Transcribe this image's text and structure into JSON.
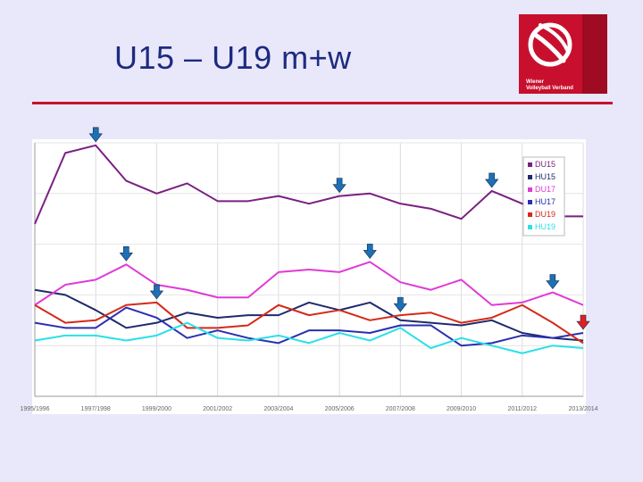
{
  "slide": {
    "title": "U15 – U19 m+w"
  },
  "logo": {
    "brand_line1": "Wiener",
    "brand_line2": "Volleyball Verband",
    "accent": "#c8102e"
  },
  "chart_data": {
    "type": "line",
    "title": "",
    "xlabel": "",
    "ylabel": "",
    "ylim": [
      0,
      100
    ],
    "grid": true,
    "legend": "top-right",
    "x": [
      "1995/1996",
      "1996/1997",
      "1997/1998",
      "1998/1999",
      "1999/2000",
      "2000/2001",
      "2001/2002",
      "2002/2003",
      "2003/2004",
      "2004/2005",
      "2005/2006",
      "2006/2007",
      "2007/2008",
      "2008/2009",
      "2009/2010",
      "2010/2011",
      "2011/2012",
      "2012/2013",
      "2013/2014"
    ],
    "tick_labels": [
      "1995/1996",
      "1997/1998",
      "1999/2000",
      "2001/2002",
      "2003/2004",
      "2005/2006",
      "2007/2008",
      "2009/2010",
      "2011/2012",
      "2013/2014"
    ],
    "series": [
      {
        "name": "DU15",
        "color": "#7b1f82",
        "values": [
          68,
          96,
          99,
          85,
          80,
          84,
          77,
          77,
          79,
          76,
          79,
          80,
          76,
          74,
          70,
          81,
          76,
          71,
          71
        ]
      },
      {
        "name": "HU15",
        "color": "#1f2a6b",
        "values": [
          42,
          40,
          34,
          27,
          29,
          33,
          31,
          32,
          32,
          37,
          34,
          37,
          30,
          29,
          28,
          30,
          25,
          23,
          22
        ]
      },
      {
        "name": "DU17",
        "color": "#e03ad6",
        "values": [
          36,
          44,
          46,
          52,
          44,
          42,
          39,
          39,
          49,
          50,
          49,
          53,
          45,
          42,
          46,
          36,
          37,
          41,
          36
        ]
      },
      {
        "name": "HU17",
        "color": "#2a2fb0",
        "values": [
          29,
          27,
          27,
          35,
          31,
          23,
          26,
          23,
          21,
          26,
          26,
          25,
          28,
          28,
          20,
          21,
          24,
          23,
          25
        ]
      },
      {
        "name": "DU19",
        "color": "#d42a1a",
        "values": [
          36,
          29,
          30,
          36,
          37,
          27,
          27,
          28,
          36,
          32,
          34,
          30,
          32,
          33,
          29,
          31,
          36,
          29,
          21
        ]
      },
      {
        "name": "HU19",
        "color": "#2ae0e8",
        "values": [
          22,
          24,
          24,
          22,
          24,
          29,
          23,
          22,
          24,
          21,
          25,
          22,
          27,
          19,
          23,
          20,
          17,
          20,
          19
        ]
      }
    ],
    "markers": [
      {
        "x": "1997/1998",
        "y": 99,
        "color": "#1f6fb5"
      },
      {
        "x": "1998/1999",
        "y": 52,
        "color": "#1f6fb5"
      },
      {
        "x": "1999/2000",
        "y": 37,
        "color": "#1f6fb5"
      },
      {
        "x": "2005/2006",
        "y": 79,
        "color": "#1f6fb5"
      },
      {
        "x": "2006/2007",
        "y": 53,
        "color": "#1f6fb5"
      },
      {
        "x": "2007/2008",
        "y": 32,
        "color": "#1f6fb5"
      },
      {
        "x": "2010/2011",
        "y": 81,
        "color": "#1f6fb5"
      },
      {
        "x": "2012/2013",
        "y": 41,
        "color": "#1f6fb5"
      },
      {
        "x": "2013/2014",
        "y": 25,
        "color": "#e02020"
      }
    ]
  }
}
